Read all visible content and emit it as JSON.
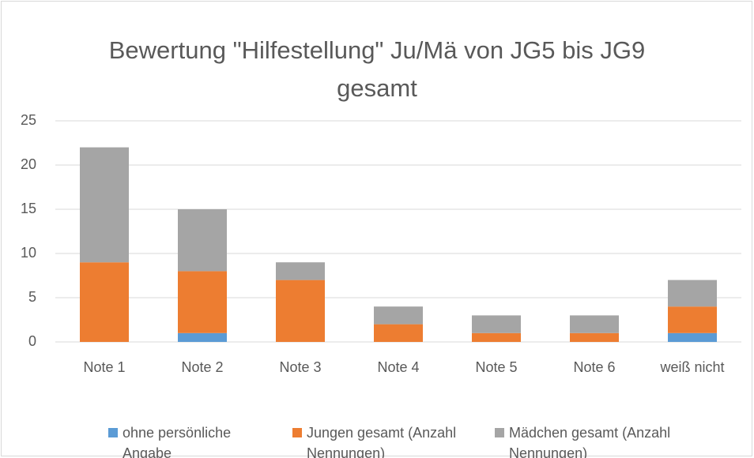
{
  "chart_data": {
    "type": "stacked_bar",
    "title": "Bewertung \"Hilfestellung\" Ju/Mä von JG5 bis JG9 gesamt",
    "categories": [
      "Note 1",
      "Note 2",
      "Note 3",
      "Note 4",
      "Note 5",
      "Note 6",
      "weiß nicht"
    ],
    "series": [
      {
        "name": "ohne persönliche Angabe",
        "color": "#5b9bd5",
        "values": [
          0,
          1,
          0,
          0,
          0,
          0,
          1
        ]
      },
      {
        "name": "Jungen gesamt (Anzahl Nennungen)",
        "color": "#ed7d31",
        "values": [
          9,
          7,
          7,
          2,
          1,
          1,
          3
        ]
      },
      {
        "name": "Mädchen gesamt (Anzahl Nennungen)",
        "color": "#a5a5a5",
        "values": [
          13,
          7,
          2,
          2,
          2,
          2,
          3
        ]
      }
    ],
    "ylim": [
      0,
      25
    ],
    "yticks": [
      0,
      5,
      10,
      15,
      20,
      25
    ],
    "grid": true,
    "legend": "bottom"
  }
}
